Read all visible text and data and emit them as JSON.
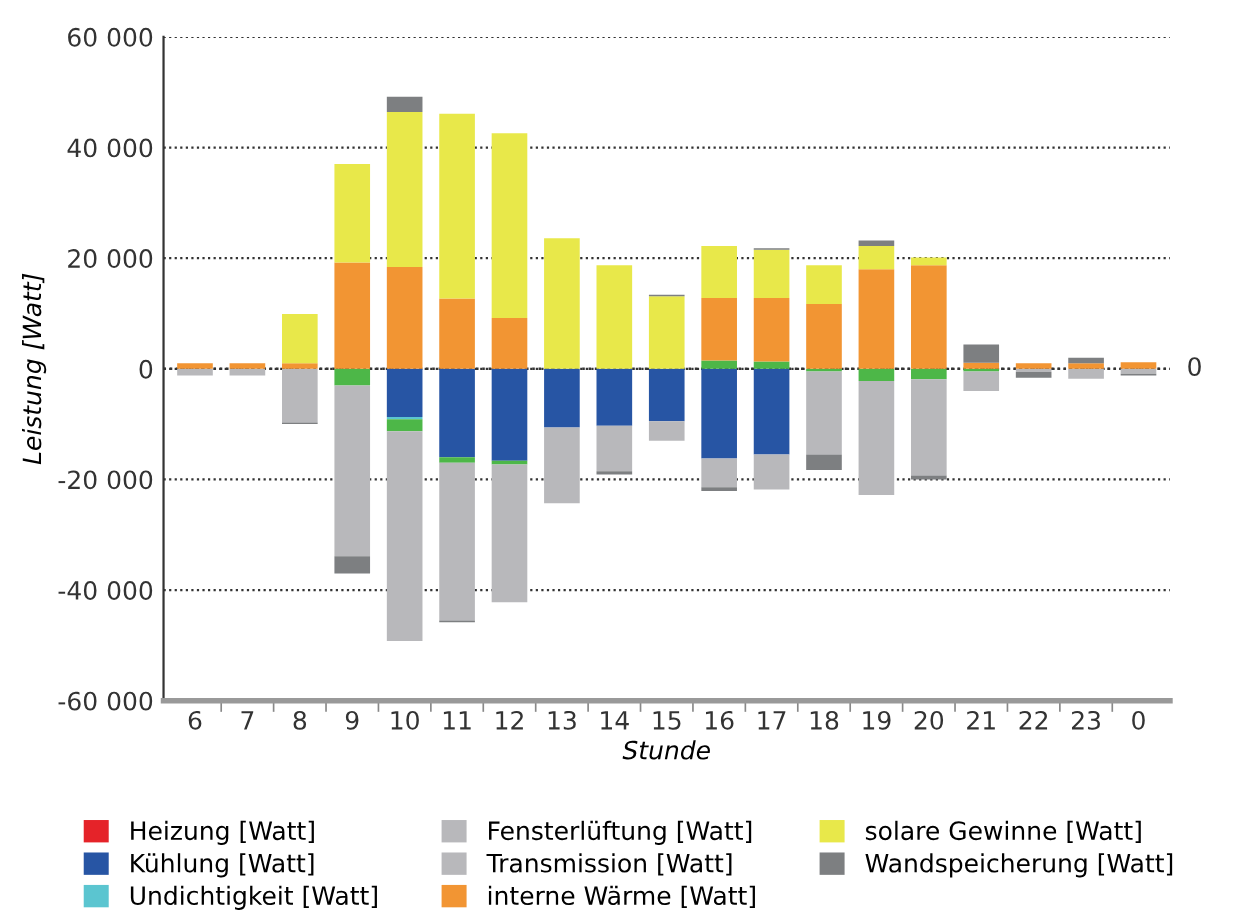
{
  "chart_data": {
    "type": "bar",
    "stacked": true,
    "xlabel": "Stunde",
    "ylabel": "Leistung [Watt]",
    "categories": [
      "6",
      "7",
      "8",
      "9",
      "10",
      "11",
      "12",
      "13",
      "14",
      "15",
      "16",
      "17",
      "18",
      "19",
      "20",
      "21",
      "22",
      "23",
      "0"
    ],
    "ylim": [
      -60000,
      60000
    ],
    "yticks": [
      {
        "value": -60000,
        "label": "-60 000"
      },
      {
        "value": -40000,
        "label": "-40 000"
      },
      {
        "value": -20000,
        "label": "-20 000"
      },
      {
        "value": 0,
        "label": "0"
      },
      {
        "value": 20000,
        "label": "20 000"
      },
      {
        "value": 40000,
        "label": "40 000"
      },
      {
        "value": 60000,
        "label": "60 000"
      }
    ],
    "ref_lines": [
      {
        "axis": "y",
        "value": 0,
        "label": "0",
        "color": "#333333",
        "line_style": "dotted"
      }
    ],
    "grid": "y",
    "legend": "bottom",
    "series": [
      {
        "name": "Heizung [Watt]",
        "color": "#e52329",
        "values": [
          null,
          null,
          null,
          null,
          null,
          null,
          null,
          null,
          null,
          null,
          null,
          null,
          null,
          null,
          null,
          null,
          null,
          null,
          null
        ]
      },
      {
        "name": "Kühlung [Watt]",
        "color": "#2755a4",
        "values": [
          null,
          null,
          null,
          null,
          -8700,
          -16000,
          -16600,
          -10600,
          -10300,
          -9500,
          -16200,
          -15500,
          null,
          null,
          null,
          null,
          null,
          null,
          null
        ]
      },
      {
        "name": "Undichtigkeit [Watt]",
        "color": "#5bc5d0",
        "values": [
          null,
          null,
          null,
          null,
          -400,
          null,
          null,
          null,
          null,
          null,
          null,
          null,
          null,
          null,
          null,
          null,
          null,
          null,
          null
        ]
      },
      {
        "color": "#4db748",
        "values": [
          null,
          null,
          null,
          -3000,
          -2200,
          -1000,
          -700,
          null,
          null,
          null,
          1500,
          1300,
          -500,
          -2200,
          -1900,
          -500,
          null,
          null,
          null
        ]
      },
      {
        "name": "Fensterlüftung [Watt]",
        "color": "#b8b8bb",
        "values": [
          null,
          null,
          null,
          null,
          null,
          null,
          null,
          null,
          null,
          null,
          null,
          null,
          null,
          null,
          null,
          null,
          null,
          null,
          null
        ]
      },
      {
        "name": "Transmission [Watt]",
        "color": "#b8b8bb",
        "values": [
          -1200,
          -1200,
          -9700,
          -30900,
          -37900,
          -28500,
          -24900,
          -13700,
          -8200,
          -3500,
          -5200,
          -6300,
          -15000,
          -20600,
          -17400,
          -3500,
          -600,
          -1800,
          -900
        ]
      },
      {
        "name": "interne Wärme [Watt]",
        "color": "#f29533",
        "values": [
          1000,
          1000,
          1000,
          19200,
          18400,
          12700,
          9200,
          null,
          null,
          null,
          11300,
          11500,
          11700,
          18000,
          18700,
          1100,
          1000,
          1000,
          1200
        ]
      },
      {
        "name": "solare Gewinne [Watt]",
        "color": "#e8e84a",
        "values": [
          null,
          null,
          8900,
          17800,
          28000,
          33400,
          33400,
          23600,
          18700,
          13100,
          9400,
          8700,
          7000,
          4200,
          1400,
          null,
          null,
          null,
          null
        ]
      },
      {
        "name": "Wandspeicherung [Watt]",
        "color": "#7d7f81",
        "values": [
          null,
          null,
          -300,
          -3100,
          2800,
          -300,
          null,
          null,
          -600,
          300,
          -700,
          300,
          -2800,
          1000,
          -700,
          3300,
          -1000,
          1000,
          -300
        ]
      }
    ]
  }
}
